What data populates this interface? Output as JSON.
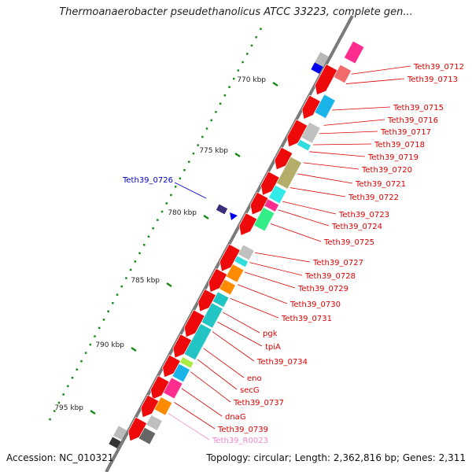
{
  "title": "Thermoanaerobacter pseudethanolicus ATCC 33223, complete gen...",
  "footer": {
    "accession": "Accession: NC_010321",
    "stats": "Topology: circular; Length: 2,362,816 bp; Genes: 2,311"
  },
  "colors": {
    "backbone": "#7a7a7a",
    "ruler_ticks": "#1a8a1a",
    "gene_label": "#dd0000",
    "highlight_label": "#0000cc",
    "rna_label": "#ee88cc"
  },
  "ruler": {
    "ticks": [
      "770 kbp",
      "775 kbp",
      "780 kbp",
      "785 kbp",
      "790 kbp",
      "795 kbp"
    ]
  },
  "highlighted_gene": {
    "label": "Teth39_0726",
    "color": "#0000cc"
  },
  "gene_labels": [
    {
      "label": "Teth39_0712",
      "color": "#dd0000"
    },
    {
      "label": "Teth39_0713",
      "color": "#dd0000"
    },
    {
      "label": "Teth39_0715",
      "color": "#dd0000"
    },
    {
      "label": "Teth39_0716",
      "color": "#dd0000"
    },
    {
      "label": "Teth39_0717",
      "color": "#dd0000"
    },
    {
      "label": "Teth39_0718",
      "color": "#dd0000"
    },
    {
      "label": "Teth39_0719",
      "color": "#dd0000"
    },
    {
      "label": "Teth39_0720",
      "color": "#dd0000"
    },
    {
      "label": "Teth39_0721",
      "color": "#dd0000"
    },
    {
      "label": "Teth39_0722",
      "color": "#dd0000"
    },
    {
      "label": "Teth39_0723",
      "color": "#dd0000"
    },
    {
      "label": "Teth39_0724",
      "color": "#dd0000"
    },
    {
      "label": "Teth39_0725",
      "color": "#dd0000"
    },
    {
      "label": "Teth39_0727",
      "color": "#dd0000"
    },
    {
      "label": "Teth39_0728",
      "color": "#dd0000"
    },
    {
      "label": "Teth39_0729",
      "color": "#dd0000"
    },
    {
      "label": "Teth39_0730",
      "color": "#dd0000"
    },
    {
      "label": "Teth39_0731",
      "color": "#dd0000"
    },
    {
      "label": "pgk",
      "color": "#dd0000"
    },
    {
      "label": "tpiA",
      "color": "#dd0000"
    },
    {
      "label": "Teth39_0734",
      "color": "#dd0000"
    },
    {
      "label": "eno",
      "color": "#dd0000"
    },
    {
      "label": "secG",
      "color": "#dd0000"
    },
    {
      "label": "Teth39_0737",
      "color": "#dd0000"
    },
    {
      "label": "dnaG",
      "color": "#dd0000"
    },
    {
      "label": "Teth39_0739",
      "color": "#dd0000"
    },
    {
      "label": "Teth39_R0023",
      "color": "#ee88cc"
    }
  ]
}
